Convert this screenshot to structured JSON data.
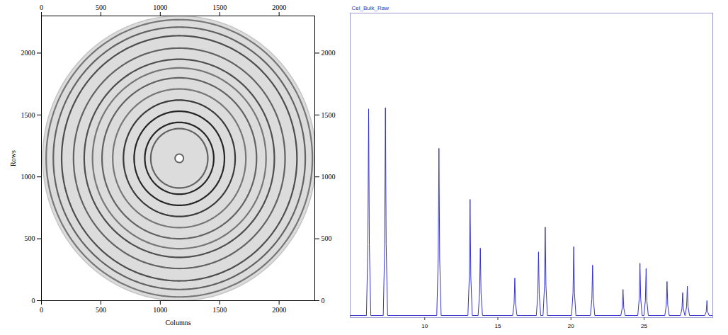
{
  "chart_data": [
    {
      "type": "rings",
      "xlabel": "Columns",
      "ylabel": "Rows",
      "xlim": [
        0,
        2300
      ],
      "ylim": [
        0,
        2300
      ],
      "xticks": [
        0,
        500,
        1000,
        1500,
        2000
      ],
      "yticks": [
        0,
        500,
        1000,
        1500,
        2000
      ],
      "center": [
        1160,
        1150
      ],
      "detector_radius": 1150,
      "rings": {
        "radius": [
          240,
          290,
          380,
          470,
          560,
          650,
          730,
          800,
          890,
          990,
          1060,
          1120
        ],
        "intensity": [
          0.6,
          0.9,
          0.9,
          0.8,
          0.5,
          0.6,
          0.5,
          0.7,
          0.6,
          0.7,
          0.6,
          0.5
        ]
      }
    },
    {
      "type": "line",
      "title": "Cel_Bulk_Raw",
      "color": "#3333cc",
      "xlim": [
        4.9,
        29.7
      ],
      "xticks": [
        10,
        15,
        20,
        25
      ],
      "ylim": [
        0,
        145
      ],
      "tick_labels": "x",
      "x": [
        4.9,
        6.01,
        6.11,
        6.16,
        6.21,
        6.31,
        7.16,
        7.26,
        7.31,
        7.36,
        7.46,
        10.82,
        10.92,
        10.97,
        11.02,
        11.12,
        12.95,
        13.05,
        13.1,
        13.15,
        13.25,
        13.65,
        13.75,
        13.8,
        13.85,
        13.95,
        16.01,
        16.11,
        16.16,
        16.21,
        16.31,
        17.63,
        17.73,
        17.78,
        17.83,
        17.93,
        18.09,
        18.19,
        18.24,
        18.29,
        18.39,
        20.04,
        20.14,
        20.19,
        20.24,
        20.34,
        21.33,
        21.43,
        21.48,
        21.53,
        21.63,
        23.41,
        23.51,
        23.56,
        23.61,
        23.71,
        24.57,
        24.67,
        24.72,
        24.77,
        24.87,
        24.99,
        25.09,
        25.14,
        25.19,
        25.29,
        26.42,
        26.52,
        26.57,
        26.62,
        26.72,
        27.49,
        27.59,
        27.64,
        27.69,
        27.79,
        27.81,
        27.91,
        27.96,
        28.01,
        28.11,
        29.15,
        29.25,
        29.3,
        29.35,
        29.45,
        29.7
      ],
      "values": [
        1,
        1,
        34.8,
        99.4,
        34.8,
        1,
        1,
        35,
        100,
        35,
        1,
        1,
        28.2,
        80.6,
        28.2,
        1,
        1,
        19.7,
        56.3,
        19.7,
        1,
        1,
        11.6,
        33.1,
        11.6,
        1,
        1,
        6.6,
        18.8,
        6.6,
        1,
        1,
        11,
        31.3,
        11,
        1,
        1,
        15.1,
        43.1,
        15.1,
        1,
        1,
        11.8,
        33.8,
        11.8,
        1,
        1,
        8.8,
        25,
        8.8,
        1,
        1,
        4.7,
        13.4,
        4.7,
        1,
        1,
        9.1,
        25.9,
        9.1,
        1,
        1,
        8.2,
        23.4,
        8.2,
        1,
        1,
        6,
        17.2,
        6,
        1,
        1,
        4.2,
        11.9,
        4.2,
        1,
        1,
        5.3,
        15,
        5.3,
        1,
        1,
        2.8,
        8.1,
        2.8,
        1,
        1
      ]
    }
  ]
}
